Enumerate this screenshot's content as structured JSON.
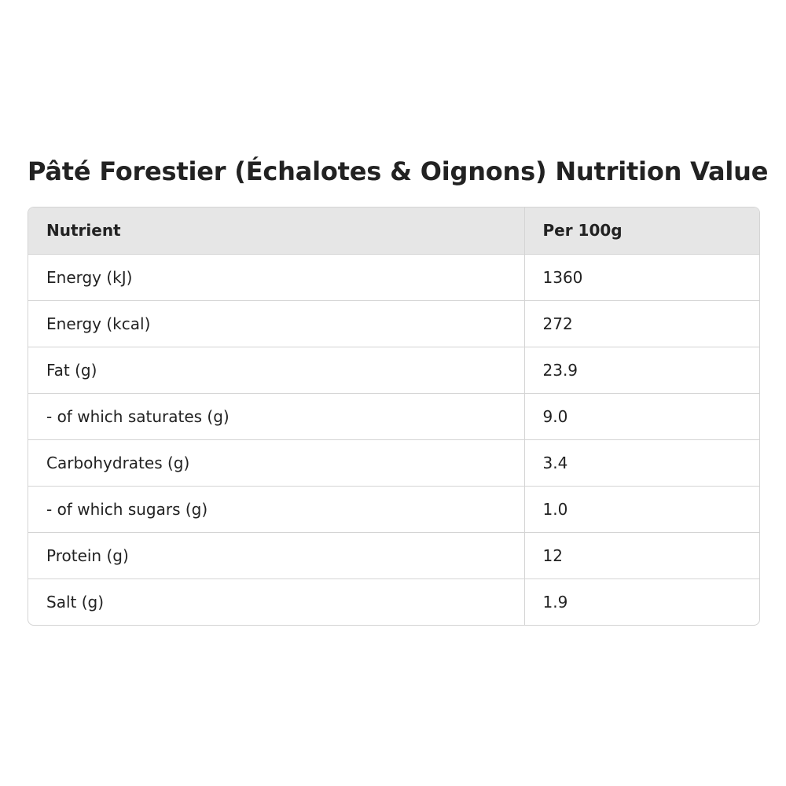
{
  "title": "Pâté Forestier (Échalotes & Oignons) Nutrition Value",
  "table": {
    "headers": [
      "Nutrient",
      "Per 100g"
    ],
    "rows": [
      [
        "Energy (kJ)",
        "1360"
      ],
      [
        "Energy (kcal)",
        "272"
      ],
      [
        "Fat (g)",
        "23.9"
      ],
      [
        "- of which saturates (g)",
        "9.0"
      ],
      [
        "Carbohydrates (g)",
        "3.4"
      ],
      [
        "- of which sugars (g)",
        "1.0"
      ],
      [
        "Protein (g)",
        "12"
      ],
      [
        "Salt (g)",
        "1.9"
      ]
    ]
  },
  "colors": {
    "header_background": "#e6e6e6",
    "border": "#d4d4d4",
    "text": "#222222"
  }
}
